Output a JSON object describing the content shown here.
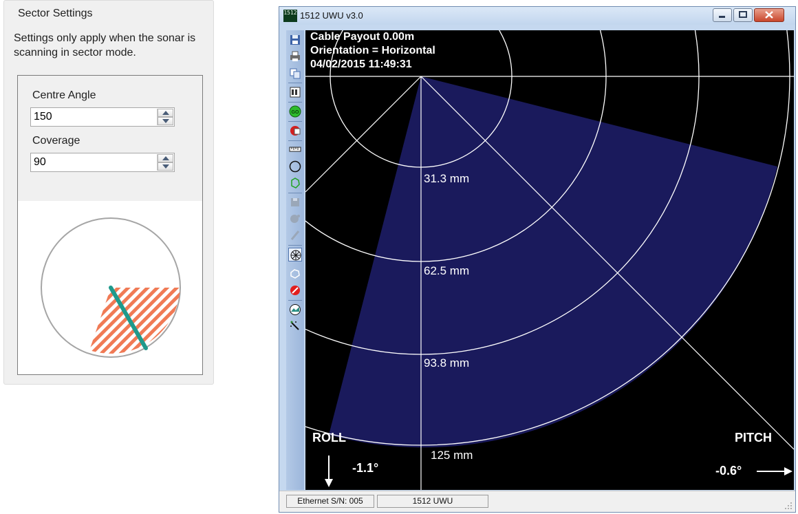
{
  "sector_settings": {
    "title": "Sector Settings",
    "description": "Settings only apply when the sonar is scanning in sector mode.",
    "centre_angle": {
      "label": "Centre Angle",
      "value": "150"
    },
    "coverage": {
      "label": "Coverage",
      "value": "90"
    }
  },
  "window": {
    "title": "1512 UWU v3.0",
    "icon_text": "1512",
    "overlay": {
      "cable_payout": "Cable Payout 0.00m",
      "orientation": "Orientation = Horizontal",
      "timestamp": "04/02/2015 11:49:31"
    },
    "range_rings": [
      "31.3 mm",
      "62.5 mm",
      "93.8 mm",
      "125 mm"
    ],
    "roll": {
      "label": "ROLL",
      "value": "-1.1°"
    },
    "pitch": {
      "label": "PITCH",
      "value": "-0.6°"
    },
    "status": {
      "serial": "Ethernet S/N: 005",
      "device": "1512 UWU"
    }
  },
  "colors": {
    "sector_fill": "#1a1a5c",
    "sector_hatch": "#f07a55",
    "heading_line": "#1f9a8c"
  }
}
